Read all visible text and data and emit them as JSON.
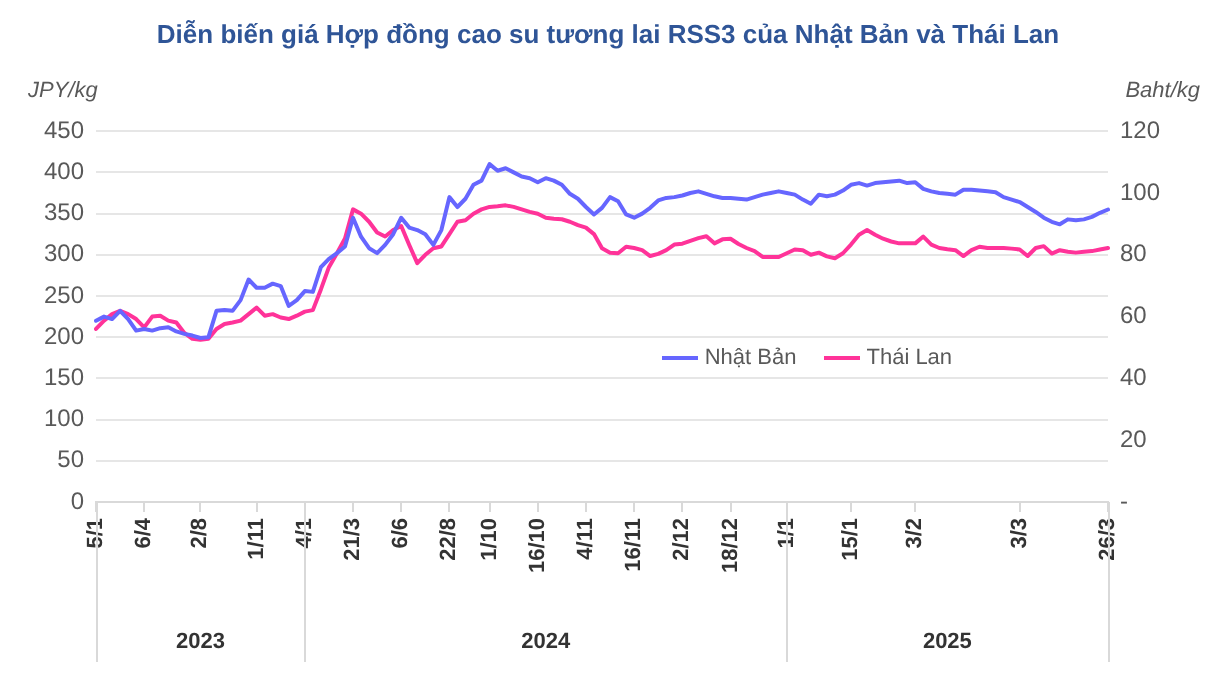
{
  "chart_data": {
    "type": "line",
    "title": "Diễn biến giá Hợp đồng cao su tương lai RSS3 của Nhật Bản và Thái Lan",
    "ylabel": "JPY/kg",
    "y2label": "Baht/kg",
    "categories": [
      "5/1",
      null,
      null,
      null,
      null,
      null,
      "6/4",
      null,
      null,
      null,
      null,
      null,
      null,
      "2/8",
      null,
      null,
      null,
      null,
      null,
      null,
      "1/11",
      null,
      null,
      null,
      null,
      null,
      "4/1",
      null,
      null,
      null,
      null,
      null,
      "21/3",
      null,
      null,
      null,
      null,
      null,
      "6/6",
      null,
      null,
      null,
      null,
      null,
      "22/8",
      null,
      null,
      null,
      null,
      "1/10",
      null,
      null,
      null,
      null,
      null,
      "16/10",
      null,
      null,
      null,
      null,
      null,
      "4/11",
      null,
      null,
      null,
      null,
      null,
      "16/11",
      null,
      null,
      null,
      null,
      null,
      "2/12",
      null,
      null,
      null,
      null,
      null,
      "18/12",
      null,
      null,
      null,
      null,
      null,
      null,
      "1/1",
      null,
      null,
      null,
      null,
      null,
      null,
      null,
      "15/1",
      null,
      null,
      null,
      null,
      null,
      null,
      null,
      "3/2",
      null,
      null,
      null,
      null,
      null,
      null,
      null,
      null,
      null,
      null,
      null,
      null,
      "3/3",
      null,
      null,
      null,
      null,
      null,
      null,
      null,
      null,
      null,
      null,
      "26/3"
    ],
    "annotations": [
      "2023",
      "2024",
      "2025"
    ],
    "series": [
      {
        "name": "Nhật Bản",
        "color": "#6666ff",
        "values": [
          220,
          225,
          222,
          232,
          222,
          208,
          210,
          208,
          211,
          212,
          207,
          204,
          202,
          199,
          200,
          232,
          233,
          232,
          245,
          270,
          260,
          260,
          265,
          262,
          238,
          245,
          256,
          255,
          285,
          295,
          302,
          310,
          345,
          322,
          308,
          302,
          312,
          325,
          345,
          333,
          330,
          325,
          312,
          330,
          370,
          358,
          368,
          385,
          390,
          410,
          402,
          405,
          400,
          395,
          393,
          388,
          393,
          390,
          385,
          374,
          368,
          358,
          349,
          357,
          370,
          365,
          349,
          345,
          350,
          357,
          366,
          369,
          370,
          372,
          375,
          377,
          374,
          371,
          369,
          369,
          368,
          367,
          370,
          373,
          375,
          377,
          375,
          373,
          367,
          362,
          373,
          371,
          373,
          378,
          385,
          387,
          384,
          387,
          388,
          389,
          390,
          387,
          388,
          380,
          377,
          375,
          374,
          373,
          379,
          379,
          378,
          377,
          376,
          370,
          367,
          364,
          358,
          352,
          345,
          340,
          337,
          343,
          342,
          343,
          346,
          351,
          355
        ]
      },
      {
        "name": "Thái Lan",
        "color": "#ff3399",
        "axis": "y2",
        "values": [
          56,
          58.7,
          60.8,
          61.9,
          60.8,
          59.2,
          56.5,
          60,
          60.3,
          58.7,
          58.1,
          54.7,
          52.8,
          52.5,
          52.8,
          56,
          57.6,
          58.1,
          58.7,
          60.8,
          62.9,
          60.3,
          60.8,
          59.7,
          59.2,
          60.3,
          61.6,
          62.1,
          68.8,
          76,
          80.5,
          85.3,
          94.7,
          93.3,
          90.7,
          87.2,
          85.9,
          88,
          89.3,
          83.2,
          77.3,
          80,
          82.1,
          82.7,
          86.7,
          90.7,
          91.2,
          93.3,
          94.7,
          95.5,
          95.7,
          96,
          95.5,
          94.7,
          93.9,
          93.3,
          92,
          91.7,
          91.5,
          90.7,
          89.6,
          88.8,
          86.7,
          82.1,
          80.7,
          80.5,
          82.6,
          82.2,
          81.5,
          79.6,
          80.3,
          81.5,
          83.3,
          83.6,
          84.5,
          85.4,
          86,
          83.7,
          85,
          85.2,
          83.5,
          82.2,
          81.2,
          79.3,
          79.3,
          79.3,
          80.5,
          81.7,
          81.5,
          80,
          80.7,
          79.5,
          78.9,
          80.5,
          83.3,
          86.5,
          88,
          86.5,
          85.2,
          84.3,
          83.7,
          83.7,
          83.7,
          85.9,
          83.3,
          82.2,
          81.8,
          81.5,
          79.6,
          81.5,
          82.6,
          82.2,
          82.2,
          82.2,
          82,
          81.7,
          79.6,
          82.2,
          82.8,
          80.4,
          81.5,
          81,
          80.7,
          81,
          81.2,
          81.7,
          82.2
        ]
      }
    ],
    "ylim": [
      0,
      450
    ],
    "yticks": [
      0,
      50,
      100,
      150,
      200,
      250,
      300,
      350,
      400,
      450
    ],
    "y2lim": [
      0,
      120
    ],
    "y2ticks": [
      {
        "value": 0,
        "label": "-"
      },
      20,
      40,
      60,
      80,
      100,
      120
    ],
    "grid": "y",
    "legend": "right",
    "marker": "none",
    "line_style": "solid"
  }
}
